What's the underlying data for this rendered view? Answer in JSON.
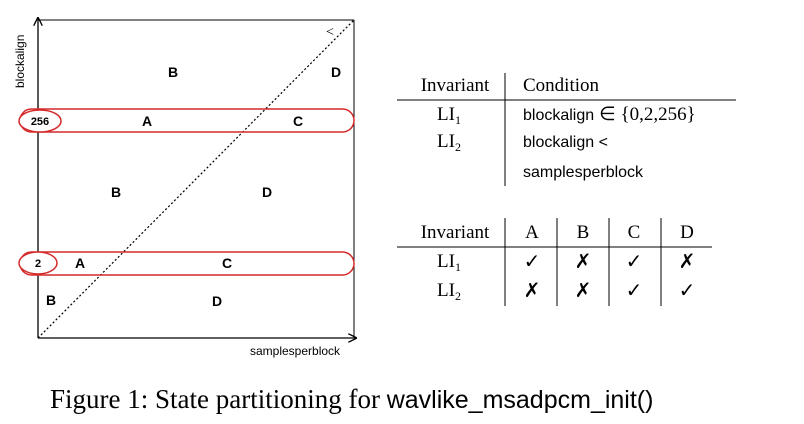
{
  "diagram": {
    "y_axis_label": "blockalign",
    "x_axis_label": "samplesperblock",
    "diagonal_label": "<",
    "bands": [
      {
        "label": "256",
        "regions": [
          "A",
          "C"
        ]
      },
      {
        "label": "2",
        "regions": [
          "A",
          "C"
        ]
      }
    ],
    "regions": {
      "top_left": "B",
      "top_right": "D",
      "mid_left": "B",
      "mid_right": "D",
      "bottom_left": "B",
      "bottom_right": "D"
    }
  },
  "table1": {
    "headers": [
      "Invariant",
      "Condition"
    ],
    "rows": [
      {
        "inv": "LI",
        "sub": "1",
        "cond": "blockalign",
        "cond_rest": "∈ {0,2,256}"
      },
      {
        "inv": "LI",
        "sub": "2",
        "cond": "blockalign <",
        "cond_line2": "samplesperblock"
      }
    ]
  },
  "table2": {
    "headers": [
      "Invariant",
      "A",
      "B",
      "C",
      "D"
    ],
    "rows": [
      {
        "inv": "LI",
        "sub": "1",
        "marks": [
          "✓",
          "✗",
          "✓",
          "✗"
        ]
      },
      {
        "inv": "LI",
        "sub": "2",
        "marks": [
          "✗",
          "✗",
          "✓",
          "✓"
        ]
      }
    ]
  },
  "caption": {
    "prefix": "Figure 1: State partitioning for ",
    "function": "wavlike_msadpcm_init()"
  },
  "colors": {
    "band_outline": "#d42a2a",
    "ink": "#000000"
  }
}
